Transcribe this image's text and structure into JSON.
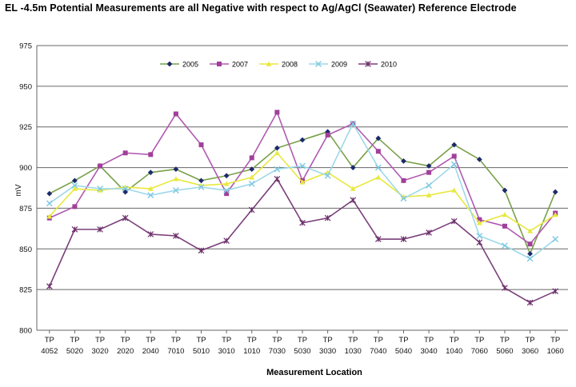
{
  "chart_data": {
    "type": "line",
    "title": "EL -4.5m Potential Measurements are all Negative with respect to Ag/AgCl (Seawater) Reference Electrode",
    "xlabel": "Measurement Location",
    "ylabel": "mV",
    "ylim": [
      800,
      975
    ],
    "yticks": [
      800,
      825,
      850,
      875,
      900,
      925,
      950,
      975
    ],
    "grid": true,
    "legend_position": "top",
    "categories": [
      [
        "TP",
        "4052"
      ],
      [
        "TP",
        "5020"
      ],
      [
        "TP",
        "3020"
      ],
      [
        "TP",
        "2020"
      ],
      [
        "TP",
        "2040"
      ],
      [
        "TP",
        "7010"
      ],
      [
        "TP",
        "5010"
      ],
      [
        "TP",
        "3010"
      ],
      [
        "TP",
        "1010"
      ],
      [
        "TP",
        "7030"
      ],
      [
        "TP",
        "5030"
      ],
      [
        "TP",
        "3030"
      ],
      [
        "TP",
        "1030"
      ],
      [
        "TP",
        "7040"
      ],
      [
        "TP",
        "5040"
      ],
      [
        "TP",
        "3040"
      ],
      [
        "TP",
        "1040"
      ],
      [
        "TP",
        "7060"
      ],
      [
        "TP",
        "5060"
      ],
      [
        "TP",
        "3060"
      ],
      [
        "TP",
        "1060"
      ]
    ],
    "series": [
      {
        "name": "2005",
        "color": "#7aa04a",
        "marker": "diamond",
        "marker_color": "#1c2a6b",
        "values": [
          884,
          892,
          901,
          885,
          897,
          899,
          892,
          895,
          899,
          912,
          917,
          922,
          900,
          918,
          904,
          901,
          914,
          905,
          886,
          847,
          885
        ]
      },
      {
        "name": "2007",
        "color": "#b05ab0",
        "marker": "square",
        "marker_color": "#a0409a",
        "values": [
          869,
          876,
          901,
          909,
          908,
          933,
          914,
          884,
          906,
          934,
          892,
          920,
          927,
          910,
          892,
          897,
          907,
          868,
          864,
          853,
          872
        ]
      },
      {
        "name": "2008",
        "color": "#e8e840",
        "marker": "triangle",
        "marker_color": "#e8e840",
        "values": [
          870,
          887,
          886,
          888,
          887,
          893,
          889,
          890,
          894,
          909,
          891,
          897,
          887,
          894,
          882,
          883,
          886,
          866,
          871,
          861,
          871
        ]
      },
      {
        "name": "2009",
        "color": "#9ed8e8",
        "marker": "x",
        "marker_color": "#7cc8e0",
        "values": [
          878,
          889,
          887,
          887,
          883,
          886,
          888,
          886,
          890,
          899,
          901,
          895,
          927,
          900,
          881,
          889,
          902,
          858,
          852,
          844,
          856
        ]
      },
      {
        "name": "2010",
        "color": "#7a3f7a",
        "marker": "star",
        "marker_color": "#6a2f6a",
        "values": [
          827,
          862,
          862,
          869,
          859,
          858,
          849,
          855,
          874,
          893,
          866,
          869,
          880,
          856,
          856,
          860,
          867,
          854,
          826,
          817,
          824
        ]
      }
    ]
  }
}
